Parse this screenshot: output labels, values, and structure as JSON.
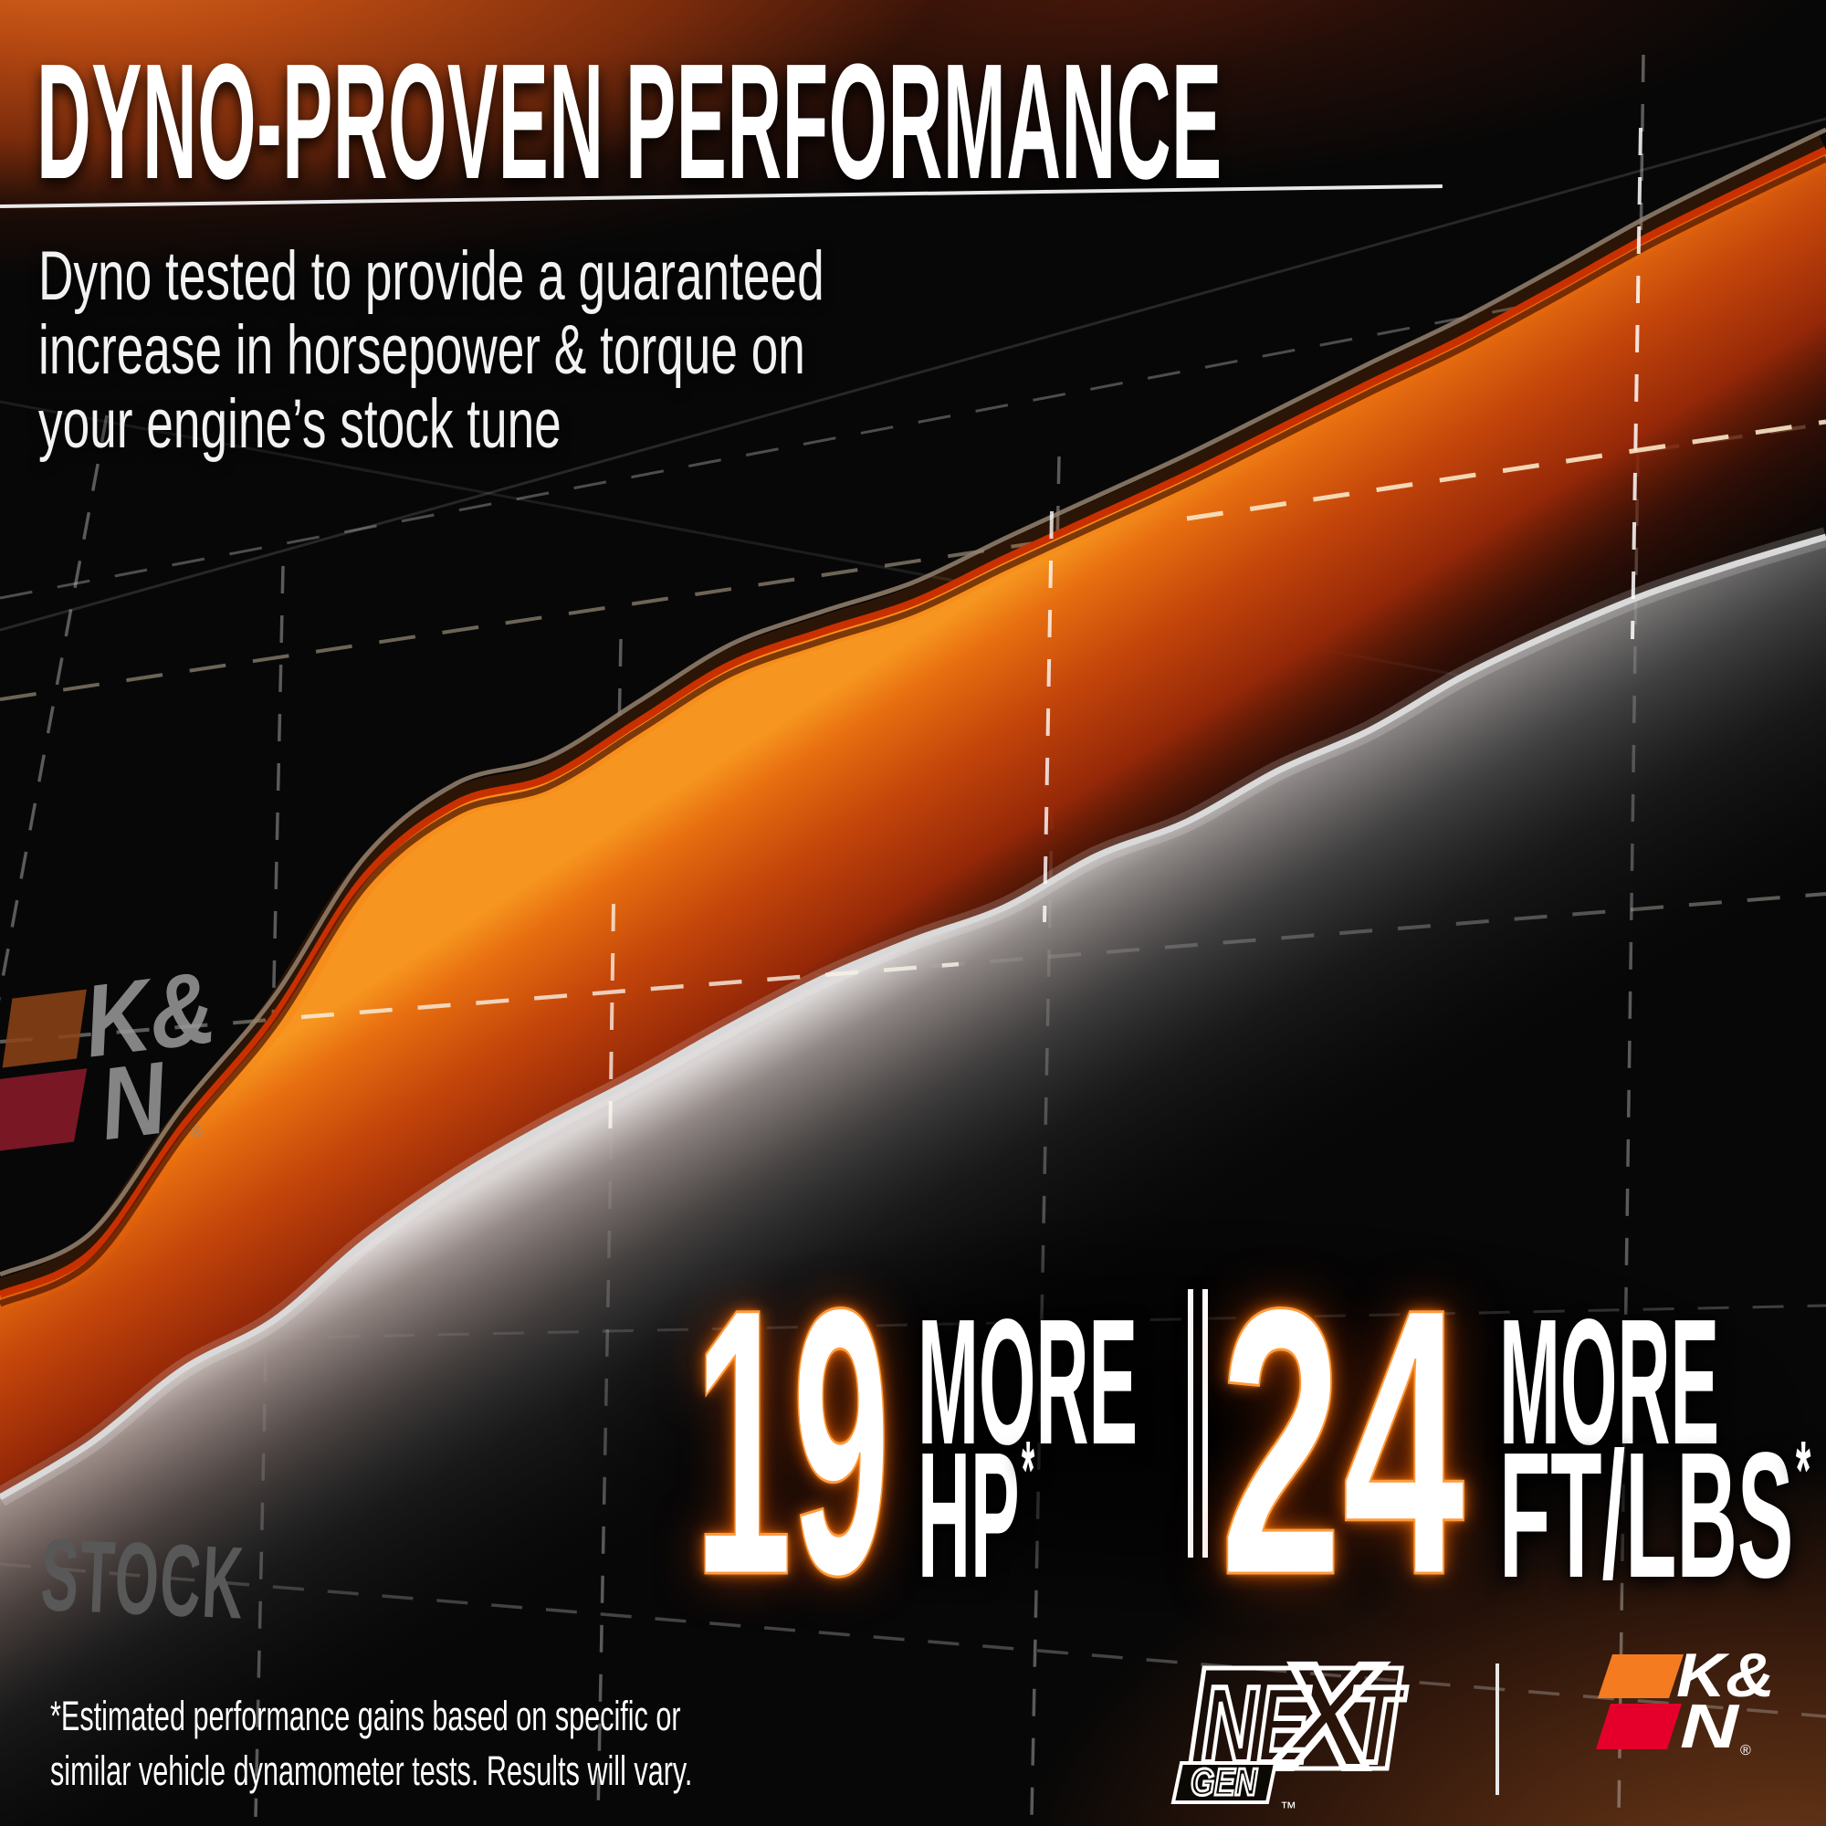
{
  "header": {
    "title": "DYNO-PROVEN PERFORMANCE",
    "subtitle_lines": [
      "Dyno tested to provide a guaranteed",
      "increase in horsepower & torque on",
      "your engine’s stock tune"
    ]
  },
  "chart": {
    "stock_label": "STOCK",
    "watermark": {
      "k_amp": "K&",
      "n": "N",
      "reg": "®"
    }
  },
  "stats": {
    "hp": {
      "value": "19",
      "more": "MORE",
      "unit": "HP",
      "asterisk": "*"
    },
    "torque": {
      "value": "24",
      "more": "MORE",
      "unit": "FT/LBS",
      "asterisk": "*"
    }
  },
  "footer": {
    "disclaimer_lines": [
      "*Estimated performance gains based on specific or",
      "similar vehicle dynamometer tests. Results will vary."
    ],
    "nextgen": {
      "ne": "NE",
      "x": "X",
      "t": "T",
      "gen": "GEN",
      "tm": "™"
    },
    "kn": {
      "k_amp": "K&",
      "n": "N",
      "reg": "®"
    }
  },
  "colors": {
    "accent_glow": "#ff7b00",
    "kn_band_edge": "#c93000",
    "kn_band_fill": "#e8660f",
    "stock_band_edge": "#d9d9d9",
    "kn_logo_orange": "#f47b20",
    "kn_logo_red": "#e4002b",
    "top_banner_orange": "#c85517"
  },
  "chart_data": {
    "type": "area",
    "title": "DYNO-PROVEN PERFORMANCE",
    "xlabel": "",
    "ylabel": "",
    "x_axis_note": "engine speed, unlabeled in image",
    "y_axis_note": "relative output 0-100, no ticks shown in image",
    "grid": "dashed perspective grid, no tick labels",
    "legend": "inline labels: K&N watermark on upper band, STOCK on lower band",
    "annotations": [
      "19 MORE HP*",
      "24 MORE FT/LBS*"
    ],
    "series": [
      {
        "name": "K&N",
        "color": "#e8660f",
        "values": [
          29.1,
          31.4,
          38.3,
          44.3,
          52,
          56,
          57.4,
          60.5,
          63.6,
          65.4,
          67,
          69.4,
          71.7,
          74,
          76.5,
          79,
          81.4,
          84.1,
          86.9,
          89.4,
          91.8
        ]
      },
      {
        "name": "STOCK",
        "color": "#bdbdbd",
        "values": [
          18,
          21,
          25,
          27.7,
          32,
          35.5,
          38.4,
          41,
          43.8,
          46.4,
          48.5,
          50.3,
          53.1,
          55,
          57.8,
          60,
          62.9,
          65.3,
          67.4,
          69.1,
          70.6
        ]
      }
    ]
  }
}
